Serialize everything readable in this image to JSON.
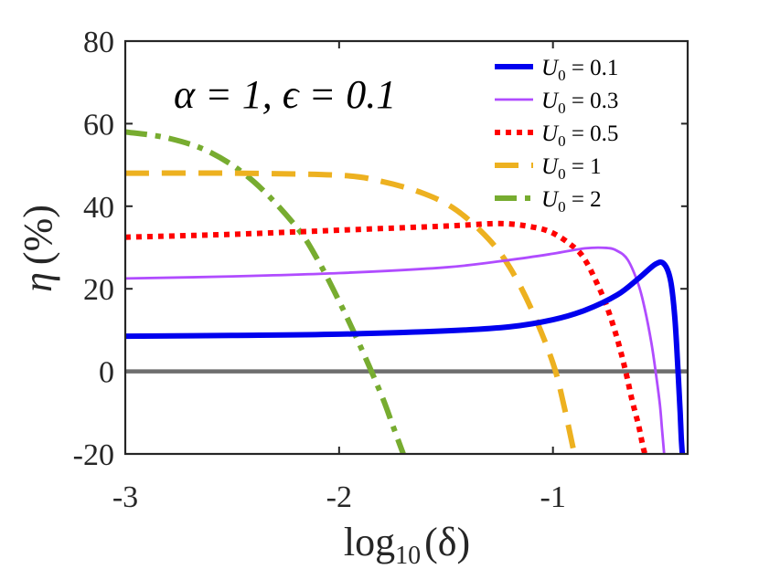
{
  "chart_data": {
    "type": "line",
    "xlabel_base": "log",
    "xlabel_sub": "10",
    "xlabel_arg": "(δ)",
    "ylabel_sym": "η",
    "ylabel_unit": "(%)",
    "xlim": [
      -3,
      -0.37
    ],
    "ylim": [
      -20,
      80
    ],
    "xticks": [
      -3,
      -2,
      -1
    ],
    "xtick_labels": [
      "-3",
      "-2",
      "-1"
    ],
    "yticks": [
      -20,
      0,
      20,
      40,
      60,
      80
    ],
    "ytick_labels": [
      "-20",
      "0",
      "20",
      "40",
      "60",
      "80"
    ],
    "annotation": "α = 1, ϵ = 0.1",
    "legend_position": "top-right",
    "baseline": {
      "y": 0,
      "color": "#6e6e6e"
    },
    "series": [
      {
        "name": "U₀ = 0.1",
        "sym": "U",
        "sub": "0",
        "rest": " = 0.1",
        "color": "#0000ee",
        "style": "solid",
        "x": [
          -3.0,
          -2.5,
          -2.0,
          -1.5,
          -1.2,
          -1.0,
          -0.85,
          -0.7,
          -0.6,
          -0.52,
          -0.48,
          -0.45,
          -0.43,
          -0.415,
          -0.405,
          -0.4,
          -0.395
        ],
        "y": [
          8.5,
          8.7,
          9.0,
          9.8,
          10.8,
          12.5,
          14.8,
          18.5,
          22.5,
          26.0,
          26.0,
          22.0,
          13.0,
          0.0,
          -10.0,
          -16.0,
          -20.0
        ]
      },
      {
        "name": "U₀ = 0.3",
        "sym": "U",
        "sub": "0",
        "rest": " = 0.3",
        "color": "#b04cff",
        "style": "thin",
        "x": [
          -3.0,
          -2.5,
          -2.0,
          -1.5,
          -1.2,
          -1.0,
          -0.85,
          -0.75,
          -0.7,
          -0.65,
          -0.6,
          -0.57,
          -0.54,
          -0.52,
          -0.5,
          -0.49,
          -0.48
        ],
        "y": [
          22.5,
          23.0,
          23.8,
          25.2,
          27.0,
          28.5,
          29.8,
          29.9,
          29.2,
          27.0,
          21.0,
          15.0,
          7.0,
          0.0,
          -8.0,
          -14.0,
          -20.0
        ]
      },
      {
        "name": "U₀ = 0.5",
        "sym": "U",
        "sub": "0",
        "rest": " = 0.5",
        "color": "#ff0000",
        "style": "dotted",
        "x": [
          -3.0,
          -2.5,
          -2.0,
          -1.5,
          -1.25,
          -1.1,
          -1.0,
          -0.9,
          -0.85,
          -0.8,
          -0.75,
          -0.7,
          -0.66,
          -0.63,
          -0.6,
          -0.58,
          -0.57
        ],
        "y": [
          32.5,
          33.2,
          34.2,
          35.2,
          35.8,
          35.0,
          33.5,
          30.0,
          27.0,
          22.0,
          16.0,
          8.0,
          0.0,
          -7.0,
          -13.0,
          -18.0,
          -20.0
        ]
      },
      {
        "name": "U₀ = 1",
        "sym": "U",
        "sub": "0",
        "rest": " = 1",
        "color": "#edb120",
        "style": "dashed",
        "x": [
          -3.0,
          -2.5,
          -2.0,
          -1.8,
          -1.6,
          -1.45,
          -1.3,
          -1.2,
          -1.1,
          -1.0,
          -0.95,
          -0.9
        ],
        "y": [
          48.0,
          48.0,
          47.5,
          46.0,
          43.0,
          39.0,
          32.0,
          25.0,
          15.0,
          2.0,
          -8.0,
          -20.0
        ]
      },
      {
        "name": "U₀ = 2",
        "sym": "U",
        "sub": "0",
        "rest": " = 2",
        "color": "#77ac30",
        "style": "dashdot",
        "x": [
          -3.0,
          -2.8,
          -2.6,
          -2.4,
          -2.2,
          -2.1,
          -2.0,
          -1.9,
          -1.8,
          -1.75,
          -1.7
        ],
        "y": [
          58.0,
          56.5,
          53.0,
          46.0,
          35.0,
          27.0,
          17.0,
          6.0,
          -6.0,
          -13.0,
          -20.0
        ]
      }
    ]
  }
}
